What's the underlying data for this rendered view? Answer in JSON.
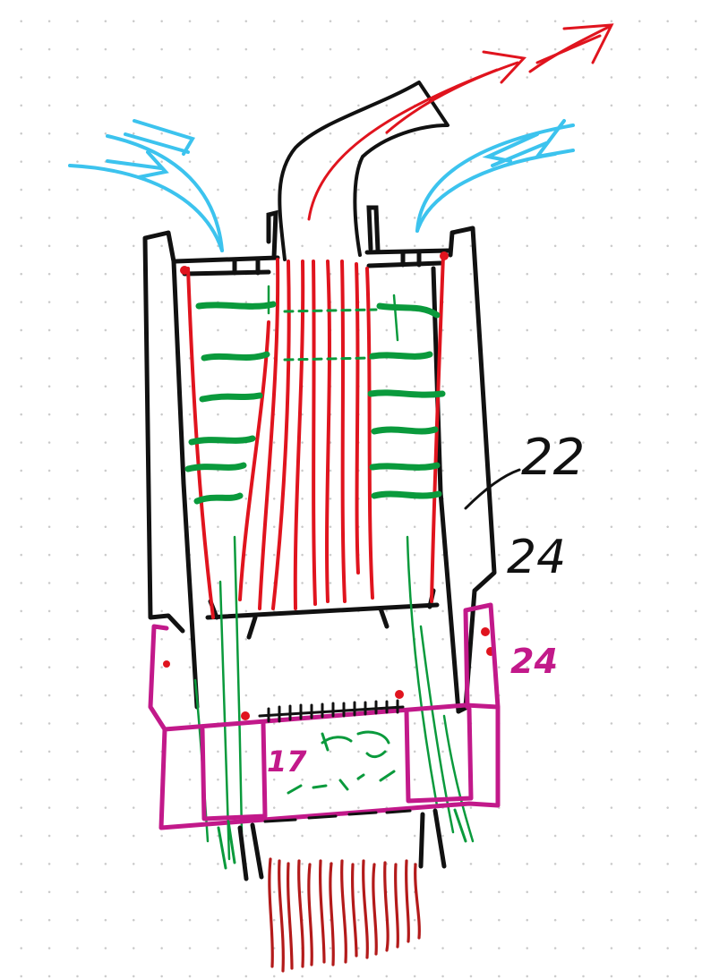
{
  "labels": {
    "label_22": "22",
    "label_24_black": "24",
    "label_24_magenta": "24",
    "label_17": "17"
  },
  "colors": {
    "outline": "#111111",
    "heat_flow": "#e0141e",
    "cool_air": "#3cc3ee",
    "fins": "#0a9a3c",
    "coupler": "#c2198a",
    "lower_glow": "#b31a1a"
  }
}
